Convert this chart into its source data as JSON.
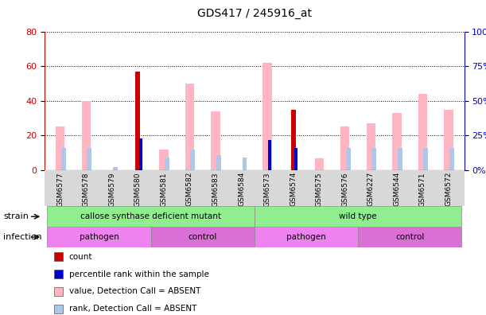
{
  "title": "GDS417 / 245916_at",
  "samples": [
    "GSM6577",
    "GSM6578",
    "GSM6579",
    "GSM6580",
    "GSM6581",
    "GSM6582",
    "GSM6583",
    "GSM6584",
    "GSM6573",
    "GSM6574",
    "GSM6575",
    "GSM6576",
    "GSM6227",
    "GSM6544",
    "GSM6571",
    "GSM6572"
  ],
  "count_values": [
    0,
    0,
    0,
    57,
    0,
    0,
    0,
    0,
    0,
    35,
    0,
    0,
    0,
    0,
    0,
    0
  ],
  "rank_values": [
    0,
    0,
    0,
    23,
    0,
    0,
    0,
    0,
    22,
    16,
    0,
    0,
    0,
    0,
    0,
    0
  ],
  "value_absent": [
    25,
    40,
    0,
    0,
    12,
    50,
    34,
    0,
    62,
    0,
    7,
    25,
    27,
    33,
    44,
    35
  ],
  "rank_absent": [
    16,
    16,
    2,
    0,
    9,
    15,
    11,
    9,
    0,
    0,
    0,
    16,
    16,
    16,
    16,
    16
  ],
  "ylim_left": [
    0,
    80
  ],
  "ylim_right": [
    0,
    100
  ],
  "yticks_left": [
    0,
    20,
    40,
    60,
    80
  ],
  "yticks_right": [
    0,
    25,
    50,
    75,
    100
  ],
  "strain_groups": [
    {
      "label": "callose synthase deficient mutant",
      "start": 0,
      "end": 8,
      "color": "#90EE90"
    },
    {
      "label": "wild type",
      "start": 8,
      "end": 16,
      "color": "#90EE90"
    }
  ],
  "infection_groups": [
    {
      "label": "pathogen",
      "start": 0,
      "end": 4,
      "color": "#EE82EE"
    },
    {
      "label": "control",
      "start": 4,
      "end": 8,
      "color": "#DA70D6"
    },
    {
      "label": "pathogen",
      "start": 8,
      "end": 12,
      "color": "#EE82EE"
    },
    {
      "label": "control",
      "start": 12,
      "end": 16,
      "color": "#DA70D6"
    }
  ],
  "color_count": "#cc0000",
  "color_rank": "#0000cc",
  "color_value_absent": "#ffb6c1",
  "color_rank_absent": "#aec6e8",
  "bar_width": 0.3,
  "legend_items": [
    {
      "color": "#cc0000",
      "label": "count"
    },
    {
      "color": "#0000cc",
      "label": "percentile rank within the sample"
    },
    {
      "color": "#ffb6c1",
      "label": "value, Detection Call = ABSENT"
    },
    {
      "color": "#aec6e8",
      "label": "rank, Detection Call = ABSENT"
    }
  ],
  "left_axis_color": "#cc0000",
  "right_axis_color": "#0000cc",
  "tick_label_area_color": "#e0e0e0"
}
